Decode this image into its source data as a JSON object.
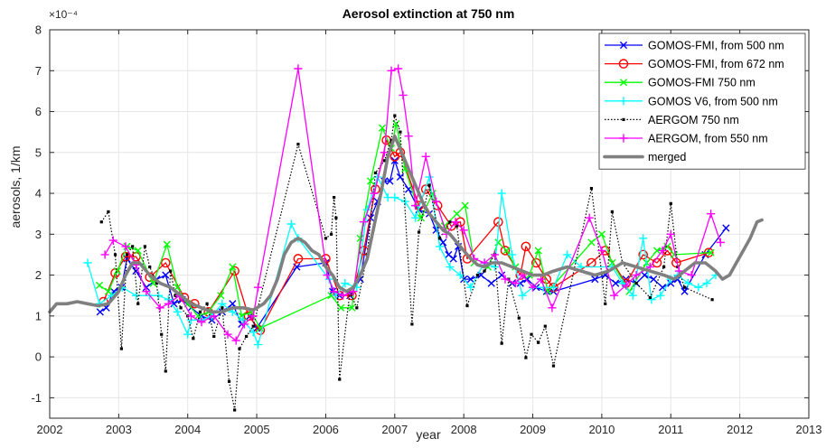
{
  "chart_data": {
    "type": "line",
    "title": "Aerosol extinction at 750 nm",
    "xlabel": "year",
    "ylabel": "aerosols, 1/km",
    "exponent_label": "×10⁻⁴",
    "xlim": [
      2002,
      2013
    ],
    "ylim": [
      -1.5,
      8
    ],
    "xticks": [
      "2002",
      "2003",
      "2004",
      "2005",
      "2006",
      "2007",
      "2008",
      "2009",
      "2010",
      "2011",
      "2012",
      "2013"
    ],
    "xtick_values": [
      2002,
      2003,
      2004,
      2005,
      2006,
      2007,
      2008,
      2009,
      2010,
      2011,
      2012,
      2013
    ],
    "yticks": [
      "-1",
      "0",
      "1",
      "2",
      "3",
      "4",
      "5",
      "6",
      "7",
      "8"
    ],
    "ytick_values": [
      -1,
      0,
      1,
      2,
      3,
      4,
      5,
      6,
      7,
      8
    ],
    "grid": true,
    "legend_position": "top-right",
    "series": [
      {
        "name": "GOMOS-FMI, from 500 nm",
        "color": "#0000ff",
        "marker": "x",
        "line": "solid",
        "x": [
          2002.73,
          2002.82,
          2002.93,
          2003.04,
          2003.12,
          2003.25,
          2003.4,
          2003.55,
          2003.68,
          2003.8,
          2003.92,
          2004.05,
          2004.2,
          2004.35,
          2004.5,
          2004.65,
          2004.78,
          2004.9,
          2005.0,
          2005.58,
          2006.0,
          2006.1,
          2006.2,
          2006.35,
          2006.5,
          2006.65,
          2006.75,
          2006.85,
          2006.93,
          2007.0,
          2007.08,
          2007.2,
          2007.35,
          2007.5,
          2007.6,
          2007.7,
          2007.78,
          2007.85,
          2007.92,
          2008.0,
          2008.1,
          2008.25,
          2008.4,
          2008.55,
          2008.7,
          2008.82,
          2008.92,
          2009.05,
          2009.2,
          2009.3,
          2009.9,
          2010.05,
          2010.2,
          2010.35,
          2010.5,
          2010.62,
          2010.75,
          2010.88,
          2011.0,
          2011.1,
          2011.2,
          2011.5,
          2011.8
        ],
        "y": [
          1.1,
          1.2,
          1.6,
          1.7,
          2.4,
          2.1,
          1.7,
          1.9,
          2.0,
          1.3,
          1.4,
          1.2,
          1.0,
          0.9,
          1.1,
          1.3,
          0.8,
          1.0,
          0.7,
          2.2,
          2.3,
          1.6,
          1.5,
          1.5,
          1.9,
          3.4,
          3.8,
          4.3,
          4.3,
          4.8,
          4.4,
          4.1,
          3.6,
          3.5,
          3.1,
          2.8,
          2.5,
          2.4,
          2.7,
          1.9,
          1.9,
          2.0,
          1.8,
          2.0,
          1.8,
          1.8,
          1.9,
          1.7,
          1.6,
          1.6,
          1.9,
          2.0,
          1.8,
          1.9,
          1.8,
          2.0,
          1.9,
          1.7,
          1.8,
          1.9,
          1.6,
          2.5,
          3.15
        ]
      },
      {
        "name": "GOMOS-FMI, from 672 nm",
        "color": "#ff0000",
        "marker": "o",
        "line": "solid",
        "x": [
          2002.78,
          2002.95,
          2003.1,
          2003.25,
          2003.45,
          2003.68,
          2003.95,
          2004.1,
          2004.3,
          2004.68,
          2004.88,
          2005.05,
          2005.6,
          2006.0,
          2006.2,
          2006.38,
          2006.55,
          2006.72,
          2006.88,
          2007.0,
          2007.08,
          2007.35,
          2007.45,
          2007.62,
          2007.82,
          2007.95,
          2008.05,
          2008.5,
          2008.6,
          2008.82,
          2008.9,
          2009.05,
          2009.2,
          2009.3,
          2009.85,
          2010.05,
          2010.35,
          2010.6,
          2010.8,
          2010.95,
          2011.08,
          2011.55
        ],
        "y": [
          1.35,
          2.05,
          2.45,
          2.45,
          1.95,
          2.3,
          1.45,
          1.3,
          1.1,
          2.1,
          1.0,
          0.65,
          2.4,
          2.4,
          1.5,
          1.5,
          2.6,
          4.1,
          5.3,
          4.9,
          5.0,
          3.7,
          4.1,
          3.7,
          3.2,
          3.3,
          2.4,
          3.3,
          2.6,
          2.0,
          2.7,
          2.3,
          1.9,
          1.7,
          2.3,
          2.6,
          1.8,
          2.5,
          2.3,
          2.6,
          2.3,
          2.55
        ]
      },
      {
        "name": "GOMOS-FMI 750 nm",
        "color": "#00ff00",
        "marker": "x",
        "line": "solid",
        "x": [
          2002.72,
          2002.85,
          2002.98,
          2003.12,
          2003.28,
          2003.5,
          2003.7,
          2003.85,
          2004.0,
          2004.15,
          2004.3,
          2004.48,
          2004.65,
          2004.78,
          2004.92,
          2005.05,
          2006.08,
          2006.22,
          2006.38,
          2006.5,
          2006.65,
          2006.82,
          2006.95,
          2007.02,
          2007.15,
          2007.38,
          2007.55,
          2007.72,
          2007.9,
          2008.02,
          2008.15,
          2008.35,
          2008.5,
          2008.62,
          2008.75,
          2008.95,
          2009.08,
          2009.22,
          2009.85,
          2010.0,
          2010.15,
          2010.4,
          2010.65,
          2010.8,
          2010.95,
          2011.05,
          2011.58
        ],
        "y": [
          1.75,
          1.6,
          2.1,
          2.7,
          2.6,
          1.8,
          2.75,
          1.7,
          1.3,
          1.0,
          1.1,
          1.5,
          2.2,
          1.0,
          1.1,
          0.7,
          1.5,
          1.2,
          1.2,
          2.9,
          4.3,
          5.6,
          5.1,
          5.7,
          4.6,
          3.4,
          4.0,
          3.2,
          3.5,
          3.7,
          2.3,
          2.2,
          2.8,
          2.6,
          2.2,
          2.0,
          2.6,
          1.6,
          2.8,
          3.0,
          2.3,
          1.6,
          2.3,
          2.6,
          2.7,
          2.5,
          2.55
        ]
      },
      {
        "name": "GOMOS V6, from 500 nm",
        "color": "#00ffff",
        "marker": "+",
        "line": "solid",
        "x": [
          2002.55,
          2002.72,
          2002.9,
          2003.05,
          2003.25,
          2003.45,
          2003.58,
          2003.72,
          2003.85,
          2004.0,
          2004.05,
          2004.2,
          2004.35,
          2004.5,
          2004.65,
          2004.8,
          2004.95,
          2005.02,
          2005.5,
          2005.6,
          2006.05,
          2006.15,
          2006.28,
          2006.45,
          2006.6,
          2006.75,
          2006.9,
          2007.0,
          2007.15,
          2007.3,
          2007.5,
          2007.65,
          2007.8,
          2007.95,
          2008.1,
          2008.3,
          2008.45,
          2008.55,
          2008.7,
          2008.85,
          2009.0,
          2009.15,
          2009.3,
          2009.5,
          2009.7,
          2010.15,
          2010.3,
          2010.45,
          2010.6,
          2010.72,
          2010.85,
          2011.0,
          2011.1,
          2011.25,
          2011.4,
          2011.52,
          2011.65
        ],
        "y": [
          2.3,
          1.3,
          1.5,
          1.7,
          1.5,
          1.5,
          1.5,
          1.4,
          1.1,
          0.55,
          0.9,
          0.9,
          1.0,
          1.3,
          1.1,
          0.9,
          0.6,
          0.3,
          3.25,
          2.9,
          1.9,
          1.5,
          1.8,
          1.7,
          3.6,
          4.4,
          3.9,
          3.9,
          3.8,
          3.4,
          4.4,
          2.7,
          2.2,
          2.0,
          1.7,
          2.3,
          2.2,
          4.0,
          2.5,
          1.5,
          1.7,
          1.7,
          1.7,
          2.5,
          2.2,
          2.2,
          1.8,
          1.5,
          2.9,
          1.4,
          1.5,
          1.9,
          2.0,
          1.8,
          1.7,
          1.8,
          2.0
        ]
      },
      {
        "name": "AERGOM 750 nm",
        "color": "#000000",
        "marker": ".",
        "line": "dotted",
        "x": [
          2002.75,
          2002.85,
          2002.95,
          2003.04,
          2003.12,
          2003.2,
          2003.28,
          2003.38,
          2003.45,
          2003.55,
          2003.62,
          2003.68,
          2003.75,
          2003.82,
          2003.9,
          2004.0,
          2004.08,
          2004.18,
          2004.28,
          2004.38,
          2004.5,
          2004.6,
          2004.68,
          2004.75,
          2004.85,
          2004.95,
          2005.6,
          2006.0,
          2006.08,
          2006.12,
          2006.15,
          2006.2,
          2006.35,
          2006.45,
          2006.6,
          2006.72,
          2006.85,
          2006.95,
          2007.0,
          2007.08,
          2007.25,
          2007.35,
          2007.5,
          2007.65,
          2007.8,
          2007.9,
          2008.05,
          2008.2,
          2008.3,
          2008.45,
          2008.55,
          2008.65,
          2008.8,
          2008.9,
          2008.98,
          2009.08,
          2009.18,
          2009.3,
          2009.85,
          2010.05,
          2010.15,
          2010.3,
          2010.5,
          2010.7,
          2010.9,
          2011.0,
          2011.1,
          2011.2,
          2011.6
        ],
        "y": [
          3.3,
          3.55,
          2.5,
          0.2,
          2.5,
          2.7,
          1.3,
          2.7,
          2.2,
          1.8,
          0.55,
          -0.35,
          2.1,
          1.5,
          1.2,
          1.0,
          0.45,
          1.1,
          1.3,
          0.5,
          1.2,
          -0.6,
          -1.3,
          0.2,
          0.5,
          0.75,
          5.2,
          2.9,
          3.0,
          3.9,
          3.4,
          -0.55,
          1.6,
          1.2,
          2.5,
          4.5,
          4.8,
          5.3,
          5.9,
          5.5,
          0.8,
          3.05,
          4.2,
          2.9,
          3.3,
          3.2,
          1.25,
          2.0,
          2.1,
          2.5,
          0.33,
          1.9,
          0.95,
          -0.02,
          0.55,
          0.35,
          0.75,
          -0.22,
          4.12,
          1.3,
          3.55,
          2.3,
          1.8,
          1.45,
          2.2,
          3.75,
          2.2,
          1.7,
          1.4
        ]
      },
      {
        "name": "AERGOM, from 550 nm",
        "color": "#ff00ff",
        "marker": "+",
        "line": "solid",
        "x": [
          2002.8,
          2002.92,
          2003.1,
          2003.25,
          2003.4,
          2003.6,
          2003.72,
          2003.88,
          2004.05,
          2004.2,
          2004.38,
          2004.58,
          2004.7,
          2004.82,
          2004.95,
          2005.02,
          2005.6,
          2006.02,
          2006.12,
          2006.25,
          2006.4,
          2006.55,
          2006.7,
          2006.85,
          2006.95,
          2007.05,
          2007.12,
          2007.2,
          2007.3,
          2007.45,
          2007.6,
          2007.75,
          2007.88,
          2008.0,
          2008.15,
          2008.3,
          2008.45,
          2008.6,
          2008.75,
          2008.85,
          2009.0,
          2009.12,
          2009.28,
          2009.82,
          2010.0,
          2010.18,
          2010.35,
          2010.5,
          2010.7,
          2010.88,
          2011.0,
          2011.12,
          2011.3,
          2011.58,
          2011.72
        ],
        "y": [
          2.5,
          2.85,
          2.7,
          2.25,
          1.6,
          1.2,
          1.3,
          1.5,
          1.0,
          0.85,
          1.0,
          0.55,
          0.4,
          0.8,
          1.0,
          1.7,
          7.05,
          2.0,
          1.6,
          1.5,
          1.6,
          3.3,
          4.0,
          5.0,
          7.0,
          7.05,
          6.4,
          5.4,
          3.7,
          4.9,
          3.8,
          3.0,
          3.3,
          3.1,
          2.4,
          2.3,
          2.5,
          1.9,
          1.8,
          2.0,
          1.7,
          1.9,
          1.2,
          3.4,
          2.6,
          1.5,
          1.75,
          2.0,
          2.2,
          2.6,
          3.0,
          2.1,
          2.0,
          3.5,
          2.8
        ]
      },
      {
        "name": "merged",
        "color": "#808080",
        "marker": "none",
        "line": "thick",
        "x": [
          2002.0,
          2002.1,
          2002.25,
          2002.4,
          2002.55,
          2002.7,
          2002.85,
          2003.0,
          2003.1,
          2003.2,
          2003.3,
          2003.45,
          2003.6,
          2003.75,
          2003.9,
          2004.05,
          2004.2,
          2004.35,
          2004.5,
          2004.65,
          2004.8,
          2004.95,
          2005.1,
          2005.2,
          2005.3,
          2005.4,
          2005.5,
          2005.6,
          2005.7,
          2005.8,
          2005.9,
          2006.0,
          2006.1,
          2006.2,
          2006.3,
          2006.4,
          2006.5,
          2006.6,
          2006.7,
          2006.8,
          2006.9,
          2007.0,
          2007.1,
          2007.2,
          2007.3,
          2007.4,
          2007.5,
          2007.6,
          2007.7,
          2007.8,
          2007.9,
          2008.0,
          2008.1,
          2008.2,
          2008.3,
          2008.4,
          2008.55,
          2008.7,
          2008.85,
          2009.0,
          2009.15,
          2009.3,
          2009.5,
          2009.7,
          2009.9,
          2010.1,
          2010.3,
          2010.5,
          2010.7,
          2010.9,
          2011.05,
          2011.2,
          2011.35,
          2011.5,
          2011.65,
          2011.75,
          2011.85,
          2011.95,
          2012.05,
          2012.15,
          2012.25,
          2012.32
        ],
        "y": [
          1.1,
          1.3,
          1.3,
          1.35,
          1.3,
          1.25,
          1.3,
          1.6,
          2.0,
          2.3,
          2.3,
          2.0,
          1.8,
          1.7,
          1.5,
          1.3,
          1.2,
          1.1,
          1.1,
          1.2,
          1.2,
          1.15,
          1.3,
          1.5,
          1.9,
          2.5,
          2.8,
          2.9,
          2.8,
          2.6,
          2.5,
          2.2,
          2.0,
          1.7,
          1.6,
          1.7,
          2.0,
          2.4,
          3.2,
          4.0,
          4.9,
          5.4,
          5.0,
          4.6,
          4.2,
          3.8,
          3.5,
          3.3,
          3.1,
          3.0,
          2.8,
          2.6,
          2.4,
          2.25,
          2.2,
          2.3,
          2.3,
          2.2,
          2.1,
          2.0,
          2.0,
          2.1,
          2.2,
          2.1,
          2.0,
          2.1,
          2.3,
          2.2,
          2.1,
          2.0,
          1.9,
          2.1,
          2.3,
          2.3,
          2.1,
          1.9,
          2.0,
          2.3,
          2.6,
          2.9,
          3.3,
          3.35
        ]
      }
    ]
  }
}
